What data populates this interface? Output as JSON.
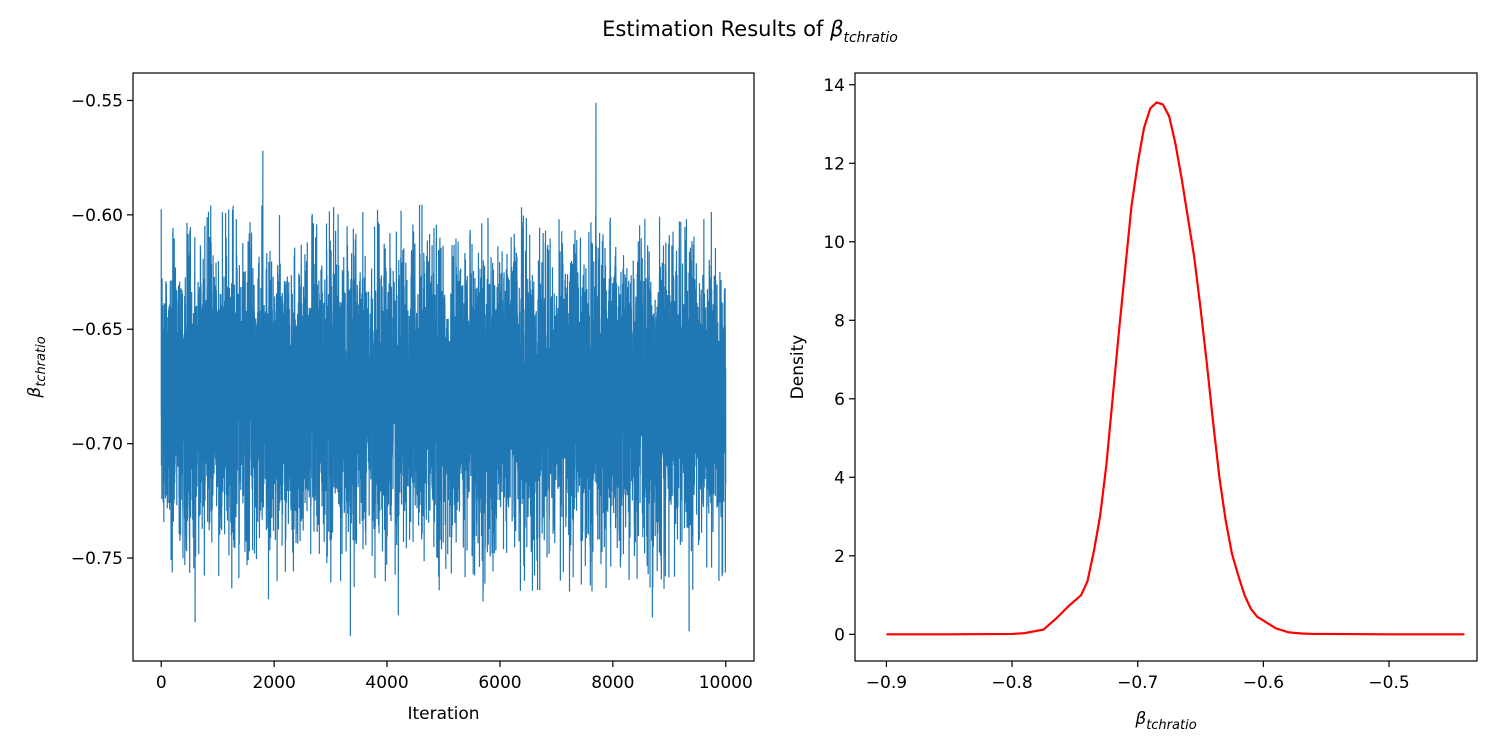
{
  "figure": {
    "title_prefix": "Estimation Results of ",
    "title_symbol": "β",
    "title_subscript": "tchratio"
  },
  "chart_data": [
    {
      "type": "line",
      "name": "trace",
      "xlabel": "Iteration",
      "ylabel_symbol": "β",
      "ylabel_subscript": "tchratio",
      "xlim": [
        -500,
        10500
      ],
      "ylim": [
        -0.795,
        -0.538
      ],
      "xticks": [
        0,
        2000,
        4000,
        6000,
        8000,
        10000
      ],
      "xtick_labels": [
        "0",
        "2000",
        "4000",
        "6000",
        "8000",
        "10000"
      ],
      "yticks": [
        -0.75,
        -0.7,
        -0.65,
        -0.6,
        -0.55
      ],
      "ytick_labels": [
        "−0.75",
        "−0.70",
        "−0.65",
        "−0.60",
        "−0.55"
      ],
      "color": "#1f77b4",
      "n_iterations": 10000,
      "center": -0.678,
      "sd": 0.029,
      "spikes": [
        {
          "x": 1800,
          "y": -0.572
        },
        {
          "x": 7700,
          "y": -0.551
        },
        {
          "x": 4200,
          "y": -0.577
        },
        {
          "x": 3350,
          "y": -0.784
        },
        {
          "x": 9350,
          "y": -0.782
        },
        {
          "x": 600,
          "y": -0.778
        },
        {
          "x": 8700,
          "y": -0.776
        },
        {
          "x": 4200,
          "y": -0.775
        },
        {
          "x": 1900,
          "y": -0.768
        },
        {
          "x": 5700,
          "y": -0.769
        }
      ],
      "grid": false
    },
    {
      "type": "line",
      "name": "density",
      "xlabel_symbol": "β",
      "xlabel_subscript": "tchratio",
      "ylabel": "Density",
      "xlim": [
        -0.925,
        -0.43
      ],
      "ylim": [
        -0.68,
        14.3
      ],
      "xticks": [
        -0.9,
        -0.8,
        -0.7,
        -0.6,
        -0.5
      ],
      "xtick_labels": [
        "−0.9",
        "−0.8",
        "−0.7",
        "−0.6",
        "−0.5"
      ],
      "yticks": [
        0,
        2,
        4,
        6,
        8,
        10,
        12,
        14
      ],
      "ytick_labels": [
        "0",
        "2",
        "4",
        "6",
        "8",
        "10",
        "12",
        "14"
      ],
      "color": "#ff0000",
      "x": [
        -0.9,
        -0.85,
        -0.8,
        -0.79,
        -0.775,
        -0.765,
        -0.755,
        -0.745,
        -0.74,
        -0.735,
        -0.73,
        -0.725,
        -0.72,
        -0.715,
        -0.71,
        -0.705,
        -0.7,
        -0.695,
        -0.69,
        -0.685,
        -0.68,
        -0.675,
        -0.67,
        -0.665,
        -0.66,
        -0.655,
        -0.65,
        -0.645,
        -0.64,
        -0.635,
        -0.63,
        -0.625,
        -0.62,
        -0.615,
        -0.61,
        -0.605,
        -0.6,
        -0.59,
        -0.58,
        -0.57,
        -0.56,
        -0.55,
        -0.5,
        -0.44
      ],
      "y": [
        0.0,
        0.0,
        0.01,
        0.03,
        0.12,
        0.4,
        0.72,
        1.0,
        1.35,
        2.1,
        3.0,
        4.3,
        6.0,
        7.7,
        9.3,
        10.9,
        12.0,
        12.9,
        13.4,
        13.55,
        13.5,
        13.2,
        12.5,
        11.6,
        10.6,
        9.6,
        8.3,
        6.9,
        5.4,
        4.0,
        2.9,
        2.05,
        1.5,
        1.0,
        0.65,
        0.45,
        0.35,
        0.15,
        0.05,
        0.02,
        0.01,
        0.01,
        0.0,
        0.0
      ],
      "grid": false
    }
  ]
}
